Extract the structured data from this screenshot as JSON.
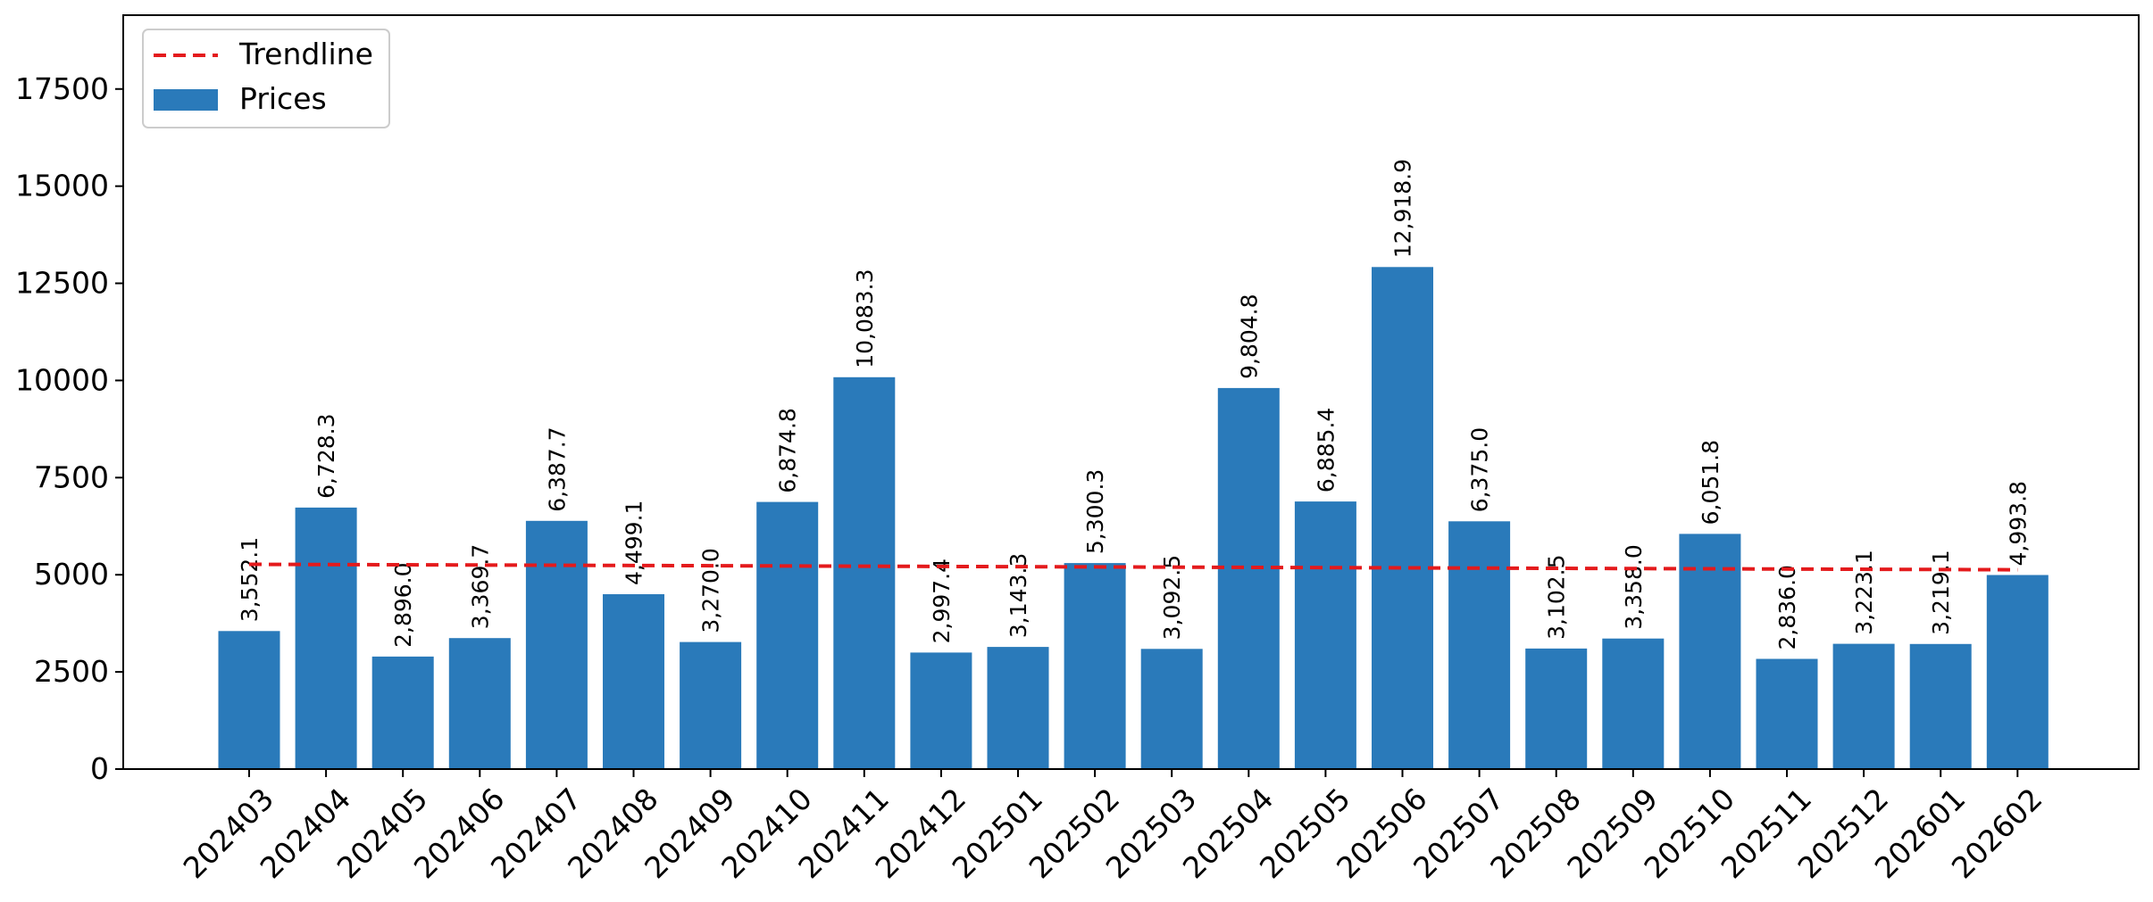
{
  "chart_data": {
    "type": "bar",
    "categories": [
      "202403",
      "202404",
      "202405",
      "202406",
      "202407",
      "202408",
      "202409",
      "202410",
      "202411",
      "202412",
      "202501",
      "202502",
      "202503",
      "202504",
      "202505",
      "202506",
      "202507",
      "202508",
      "202509",
      "202510",
      "202511",
      "202512",
      "202601",
      "202602"
    ],
    "series": [
      {
        "name": "Prices",
        "type": "bar",
        "color": "#2a7aba",
        "values": [
          3552.1,
          6728.3,
          2896.0,
          3369.7,
          6387.7,
          4499.1,
          3270.0,
          6874.8,
          10083.3,
          2997.4,
          3143.3,
          5300.3,
          3092.5,
          9804.8,
          6885.4,
          12918.9,
          6375.0,
          3102.5,
          3358.0,
          6051.8,
          2836.0,
          3223.1,
          3219.1,
          4993.8
        ],
        "labels": [
          "3,552.1",
          "6,728.3",
          "2,896.0",
          "3,369.7",
          "6,387.7",
          "4,499.1",
          "3,270.0",
          "6,874.8",
          "10,083.3",
          "2,997.4",
          "3,143.3",
          "5,300.3",
          "3,092.5",
          "9,804.8",
          "6,885.4",
          "12,918.9",
          "6,375.0",
          "3,102.5",
          "3,358.0",
          "6,051.8",
          "2,836.0",
          "3,223.1",
          "3,219.1",
          "4,993.8"
        ]
      },
      {
        "name": "Trendline",
        "type": "line",
        "style": "dashed",
        "color": "#e41a1c",
        "start": 5270,
        "end": 5130
      }
    ],
    "yticks": [
      "0",
      "2500",
      "5000",
      "7500",
      "10000",
      "12500",
      "15000",
      "17500"
    ],
    "ylim": [
      0,
      19400
    ],
    "legend": {
      "position": "top-left"
    },
    "grid": false
  }
}
